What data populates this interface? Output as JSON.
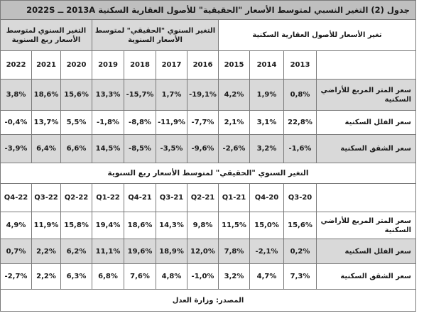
{
  "title": "جدول (2) التغير النسبي لمتوسط الأسعار \"الحقيقية\" للأصول العقارية السكنية 2013A ــ 2022S",
  "group_headers": {
    "g1": "تغير الأسعار للأصول العقارية السكنية",
    "g2": "التغير السنوي \"الحقيقي\" لمتوسط الأسعار السنوية",
    "g3": "التغير السنوي لمتوسط الأسعار ربع السنوية"
  },
  "annual": {
    "years": [
      "2013",
      "2014",
      "2015",
      "2016",
      "2017",
      "2018",
      "2019",
      "2020",
      "2021",
      "2022"
    ],
    "rows": [
      {
        "label": "سعر المتر المربع للأراضي السكنية",
        "values": [
          "0,8%",
          "1,9%",
          "4,2%",
          "-19,1%",
          "1,7%",
          "-15,7%",
          "13,3%",
          "15,6%",
          "18,6%",
          "3,8%"
        ]
      },
      {
        "label": "سعر الفلل السكنية",
        "values": [
          "22,8%",
          "3,1%",
          "2,1%",
          "-7,7%",
          "-11,9%",
          "-8,8%",
          "-1,8%",
          "5,5%",
          "13,7%",
          "-0,4%"
        ]
      },
      {
        "label": "سعر الشقق السكنية",
        "values": [
          "-1,6%",
          "3,2%",
          "-2,6%",
          "-9,6%",
          "-3,5%",
          "-8,5%",
          "14,5%",
          "6,6%",
          "6,4%",
          "-3,9%"
        ]
      }
    ]
  },
  "quarterly_title": "التغير السنوي \"الحقيقي\" لمتوسط الأسعار ربع السنوية",
  "quarterly": {
    "quarters": [
      "Q3-20",
      "Q4-20",
      "Q1-21",
      "21-Q2",
      "21-Q3",
      "21-Q4",
      "Q1-22",
      "Q2-22",
      "Q3-22",
      "Q4-22"
    ],
    "rows": [
      {
        "label": "سعر المتر المربع للأراضي السكنية",
        "values": [
          "15,6%",
          "15,0%",
          "11,5%",
          "9,8%",
          "14,3%",
          "18,6%",
          "19,4%",
          "15,8%",
          "11,9%",
          "4,9%"
        ]
      },
      {
        "label": "سعر الفلل السكنية",
        "values": [
          "0,2%",
          "-2,1%",
          "7,8%",
          "12,0%",
          "18,9%",
          "19,6%",
          "11,1%",
          "6,2%",
          "2,2%",
          "0,7%"
        ]
      },
      {
        "label": "سعر الشقق السكنية",
        "values": [
          "7,3%",
          "4,7%",
          "3,2%",
          "-1,0%",
          "4,8%",
          "7,6%",
          "6,8%",
          "6,3%",
          "2,2%",
          "-2,7%"
        ]
      }
    ]
  },
  "source": "المصدر: وزارة العدل",
  "colors": {
    "shaded": "#d9d9d9",
    "title_bg": "#bfbfbf",
    "border": "#7a7a7a"
  }
}
